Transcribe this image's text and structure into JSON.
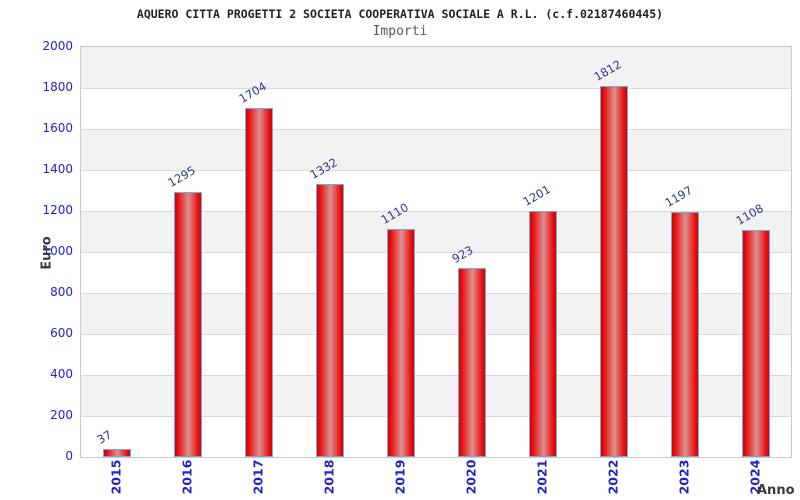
{
  "header": {
    "title": "AQUERO CITTA PROGETTI 2 SOCIETA COOPERATIVA SOCIALE A R.L. (c.f.02187460445)",
    "subtitle": "Importi"
  },
  "chart_data": {
    "type": "bar",
    "title": "AQUERO CITTA PROGETTI 2 SOCIETA COOPERATIVA SOCIALE A R.L. (c.f.02187460445)",
    "subtitle": "Importi",
    "categories": [
      "2015",
      "2016",
      "2017",
      "2018",
      "2019",
      "2020",
      "2021",
      "2022",
      "2023",
      "2024"
    ],
    "values": [
      37,
      1295,
      1704,
      1332,
      1110,
      923,
      1201,
      1812,
      1197,
      1108
    ],
    "xlabel": "Anno",
    "ylabel": "Euro",
    "ylim": [
      0,
      2000
    ],
    "ytick_step": 200,
    "yticks": [
      0,
      200,
      400,
      600,
      800,
      1000,
      1200,
      1400,
      1600,
      1800,
      2000
    ],
    "grid": true,
    "legend": false,
    "band_fill": "alternating"
  },
  "colors": {
    "title": "#222222",
    "subtitle": "#5a5a5a",
    "tick_label": "#2323cd",
    "value_label": "#333392",
    "axis_name": "#3a3a3a",
    "bar_edge_red": "#ea1111",
    "bar_dark_red": "#cf0303",
    "bar_mid_pink": "#dc9090",
    "bar_border": "#74aadd",
    "gridline": "#d9d9d9",
    "plot_border": "#c9c9c9",
    "band_gray": "#f2f2f2",
    "band_white": "#ffffff"
  }
}
